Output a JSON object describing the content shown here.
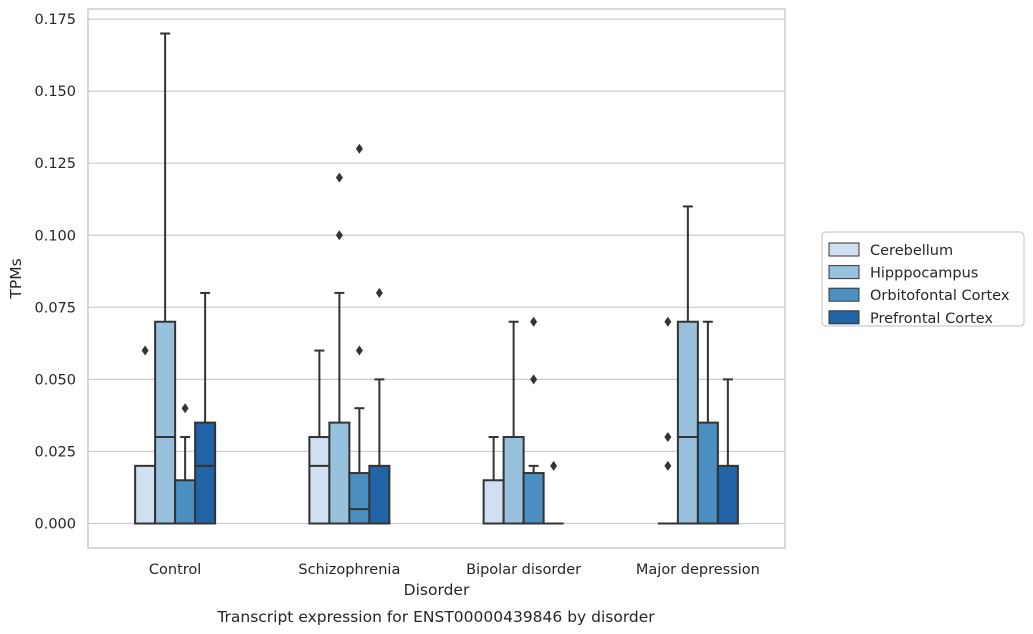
{
  "colors": {
    "grid": "#cccccc",
    "frame": "#cccccc",
    "stroke": "#333333",
    "Cerebellum": "#d0e0f0",
    "Hipppocampus": "#97c1dc",
    "Orbitofontal Cortex": "#4a8fc0",
    "Prefrontal Cortex": "#2063a6"
  },
  "caption": "Transcript expression for ENST00000439846 by disorder",
  "chart_data": {
    "type": "box",
    "xlabel": "Disorder",
    "ylabel": "TPMs",
    "ylim": [
      -0.0085,
      0.1785
    ],
    "yticks": [
      0.0,
      0.025,
      0.05,
      0.075,
      0.1,
      0.125,
      0.15,
      0.175
    ],
    "ytick_labels": [
      "0.000",
      "0.025",
      "0.050",
      "0.075",
      "0.100",
      "0.125",
      "0.150",
      "0.175"
    ],
    "categories": [
      "Control",
      "Schizophrenia",
      "Bipolar disorder",
      "Major depression"
    ],
    "grid": "horizontal",
    "legend_position": "right",
    "series": [
      {
        "name": "Cerebellum",
        "boxes": [
          {
            "q1": 0.0,
            "median": 0.0,
            "q3": 0.02,
            "whisker_low": 0.0,
            "whisker_high": 0.02,
            "outliers": [
              0.06
            ]
          },
          {
            "q1": 0.0,
            "median": 0.02,
            "q3": 0.03,
            "whisker_low": 0.0,
            "whisker_high": 0.06,
            "outliers": []
          },
          {
            "q1": 0.0,
            "median": 0.0,
            "q3": 0.015,
            "whisker_low": 0.0,
            "whisker_high": 0.03,
            "outliers": []
          },
          {
            "q1": 0.0,
            "median": 0.0,
            "q3": 0.0,
            "whisker_low": 0.0,
            "whisker_high": 0.0,
            "outliers": [
              0.02,
              0.03,
              0.07
            ]
          }
        ]
      },
      {
        "name": "Hipppocampus",
        "boxes": [
          {
            "q1": 0.0,
            "median": 0.03,
            "q3": 0.07,
            "whisker_low": 0.0,
            "whisker_high": 0.17,
            "outliers": []
          },
          {
            "q1": 0.0,
            "median": 0.0,
            "q3": 0.035,
            "whisker_low": 0.0,
            "whisker_high": 0.08,
            "outliers": [
              0.1,
              0.12
            ]
          },
          {
            "q1": 0.0,
            "median": 0.0,
            "q3": 0.03,
            "whisker_low": 0.0,
            "whisker_high": 0.07,
            "outliers": []
          },
          {
            "q1": 0.0,
            "median": 0.03,
            "q3": 0.07,
            "whisker_low": 0.0,
            "whisker_high": 0.11,
            "outliers": []
          }
        ]
      },
      {
        "name": "Orbitofontal Cortex",
        "boxes": [
          {
            "q1": 0.0,
            "median": 0.0,
            "q3": 0.015,
            "whisker_low": 0.0,
            "whisker_high": 0.03,
            "outliers": [
              0.04
            ]
          },
          {
            "q1": 0.0,
            "median": 0.005,
            "q3": 0.0175,
            "whisker_low": 0.0,
            "whisker_high": 0.04,
            "outliers": [
              0.06,
              0.13
            ]
          },
          {
            "q1": 0.0,
            "median": 0.0,
            "q3": 0.0175,
            "whisker_low": 0.0,
            "whisker_high": 0.02,
            "outliers": [
              0.05,
              0.07
            ]
          },
          {
            "q1": 0.0,
            "median": 0.0,
            "q3": 0.035,
            "whisker_low": 0.0,
            "whisker_high": 0.07,
            "outliers": []
          }
        ]
      },
      {
        "name": "Prefrontal Cortex",
        "boxes": [
          {
            "q1": 0.0,
            "median": 0.02,
            "q3": 0.035,
            "whisker_low": 0.0,
            "whisker_high": 0.08,
            "outliers": []
          },
          {
            "q1": 0.0,
            "median": 0.0,
            "q3": 0.02,
            "whisker_low": 0.0,
            "whisker_high": 0.05,
            "outliers": [
              0.08
            ]
          },
          {
            "q1": 0.0,
            "median": 0.0,
            "q3": 0.0,
            "whisker_low": 0.0,
            "whisker_high": 0.0,
            "outliers": [
              0.02
            ]
          },
          {
            "q1": 0.0,
            "median": 0.0,
            "q3": 0.02,
            "whisker_low": 0.0,
            "whisker_high": 0.05,
            "outliers": []
          }
        ]
      }
    ]
  }
}
